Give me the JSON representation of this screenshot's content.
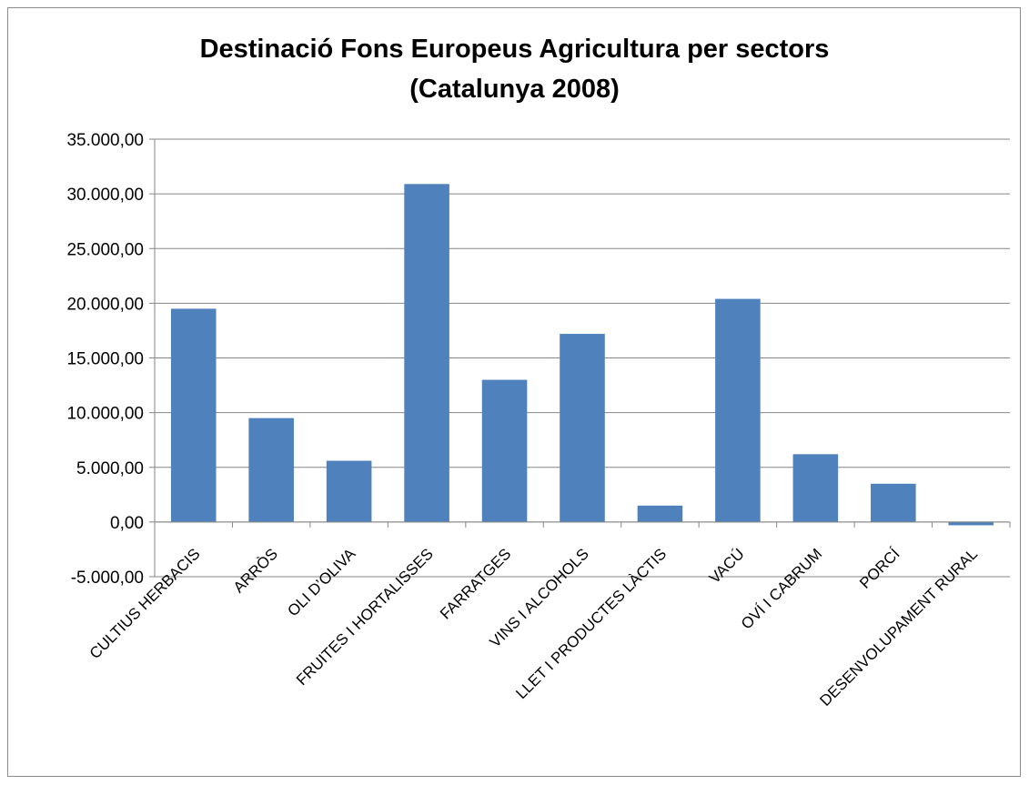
{
  "chart_data": {
    "type": "bar",
    "title_line1": "Destinació Fons Europeus Agricultura per sectors",
    "title_line2": "(Catalunya 2008)",
    "categories": [
      "CULTIUS HERBACIS",
      "ARRÒS",
      "OLI D’OLIVA",
      "FRUITES I HORTALISSES",
      "FARRATGES",
      "VINS I ALCOHOLS",
      "LLET I PRODUCTES LÀCTIS",
      "VACÚ",
      "OVÍ I CABRUM",
      "PORCÍ",
      "DESENVOLUPAMENT RURAL"
    ],
    "values": [
      19500,
      9500,
      5600,
      30900,
      13000,
      17200,
      1500,
      20400,
      6200,
      3500,
      -300
    ],
    "ylim": [
      -5000,
      35000
    ],
    "yticks": [
      -5000,
      0,
      5000,
      10000,
      15000,
      20000,
      25000,
      30000,
      35000
    ],
    "ytick_labels": [
      "-5.000,00",
      "0,00",
      "5.000,00",
      "10.000,00",
      "15.000,00",
      "20.000,00",
      "25.000,00",
      "30.000,00",
      "35.000,00"
    ],
    "xlabel": "",
    "ylabel": "",
    "grid": true,
    "legend": "none",
    "bar_color": "#4f81bd",
    "grid_color": "#868686"
  }
}
